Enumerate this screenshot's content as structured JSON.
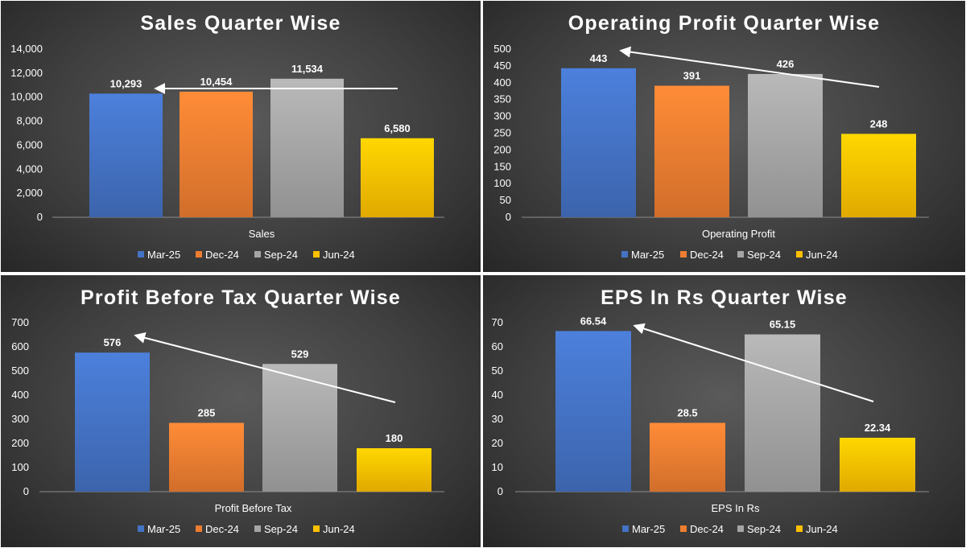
{
  "colors": {
    "Mar-25": "#4472c4",
    "Dec-24": "#ed7d31",
    "Sep-24": "#a5a5a5",
    "Jun-24": "#ffc000"
  },
  "chart_data": [
    {
      "type": "bar",
      "title": "Sales Quarter Wise",
      "categories": [
        "Sales"
      ],
      "series": [
        {
          "name": "Mar-25",
          "values": [
            10293
          ],
          "label": "10,293"
        },
        {
          "name": "Dec-24",
          "values": [
            10454
          ],
          "label": "10,454"
        },
        {
          "name": "Sep-24",
          "values": [
            11534
          ],
          "label": "11,534"
        },
        {
          "name": "Jun-24",
          "values": [
            6580
          ],
          "label": "6,580"
        }
      ],
      "ylim": [
        0,
        14000
      ],
      "yticks": [
        "0",
        "2,000",
        "4,000",
        "6,000",
        "8,000",
        "10,000",
        "12,000",
        "14,000"
      ],
      "grid": false,
      "legend": "bottom",
      "annotation": "arrow pointing left"
    },
    {
      "type": "bar",
      "title": "Operating Profit Quarter Wise",
      "categories": [
        "Operating Profit"
      ],
      "series": [
        {
          "name": "Mar-25",
          "values": [
            443
          ],
          "label": "443"
        },
        {
          "name": "Dec-24",
          "values": [
            391
          ],
          "label": "391"
        },
        {
          "name": "Sep-24",
          "values": [
            426
          ],
          "label": "426"
        },
        {
          "name": "Jun-24",
          "values": [
            248
          ],
          "label": "248"
        }
      ],
      "ylim": [
        0,
        500
      ],
      "yticks": [
        "0",
        "50",
        "100",
        "150",
        "200",
        "250",
        "300",
        "350",
        "400",
        "450",
        "500"
      ],
      "grid": false,
      "legend": "bottom",
      "annotation": "arrow pointing up-left"
    },
    {
      "type": "bar",
      "title": "Profit Before Tax Quarter Wise",
      "categories": [
        "Profit Before Tax"
      ],
      "series": [
        {
          "name": "Mar-25",
          "values": [
            576
          ],
          "label": "576"
        },
        {
          "name": "Dec-24",
          "values": [
            285
          ],
          "label": "285"
        },
        {
          "name": "Sep-24",
          "values": [
            529
          ],
          "label": "529"
        },
        {
          "name": "Jun-24",
          "values": [
            180
          ],
          "label": "180"
        }
      ],
      "ylim": [
        0,
        700
      ],
      "yticks": [
        "0",
        "100",
        "200",
        "300",
        "400",
        "500",
        "600",
        "700"
      ],
      "grid": false,
      "legend": "bottom",
      "annotation": "arrow pointing up-left"
    },
    {
      "type": "bar",
      "title": "EPS In Rs Quarter Wise",
      "categories": [
        "EPS In Rs"
      ],
      "series": [
        {
          "name": "Mar-25",
          "values": [
            66.54
          ],
          "label": "66.54"
        },
        {
          "name": "Dec-24",
          "values": [
            28.5
          ],
          "label": "28.5"
        },
        {
          "name": "Sep-24",
          "values": [
            65.15
          ],
          "label": "65.15"
        },
        {
          "name": "Jun-24",
          "values": [
            22.34
          ],
          "label": "22.34"
        }
      ],
      "ylim": [
        0,
        70
      ],
      "yticks": [
        "0",
        "10",
        "20",
        "30",
        "40",
        "50",
        "60",
        "70"
      ],
      "grid": false,
      "legend": "bottom",
      "annotation": "arrow pointing up-left"
    }
  ]
}
